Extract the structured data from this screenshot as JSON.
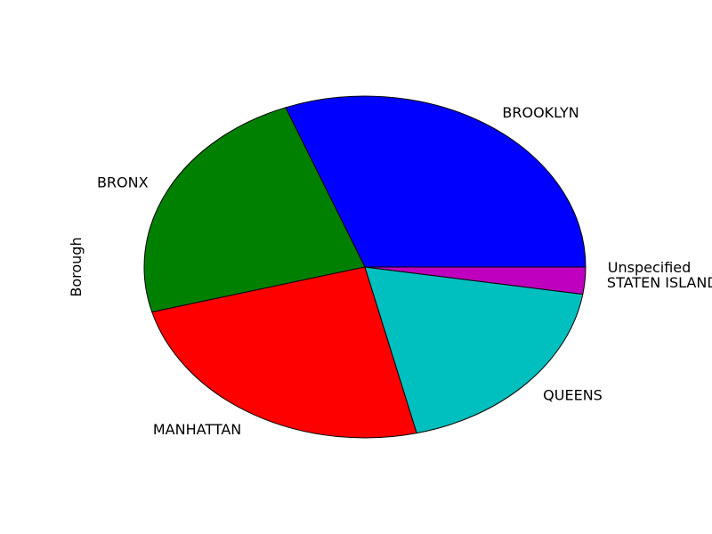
{
  "chart_data": {
    "type": "pie",
    "title": "",
    "ylabel": "Borough",
    "start_angle_deg": 0,
    "direction": "counterclockwise",
    "slices": [
      {
        "label": "BROOKLYN",
        "value": 32.7,
        "color": "#0000ff"
      },
      {
        "label": "BRONX",
        "value": 24.8,
        "color": "#008000"
      },
      {
        "label": "MANHATTAN",
        "value": 26.0,
        "color": "#ff0000"
      },
      {
        "label": "QUEENS",
        "value": 19.8,
        "color": "#00bfbf"
      },
      {
        "label": "STATEN ISLAND",
        "value": 2.7,
        "color": "#bf00bf"
      },
      {
        "label": "Unspecified",
        "value": 0.0,
        "color": "#ffff00"
      }
    ]
  }
}
